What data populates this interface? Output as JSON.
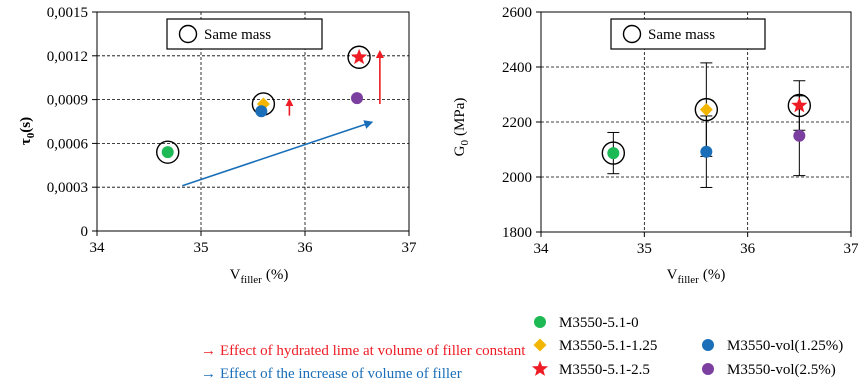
{
  "chart_data": [
    {
      "type": "scatter",
      "title": "",
      "xlabel_main": "V",
      "xlabel_sub": "filler",
      "xlabel_unit": "(%)",
      "ylabel_main": "τ",
      "ylabel_sub": "0",
      "ylabel_unit": "(s)",
      "xlim": [
        34,
        37
      ],
      "ylim": [
        0,
        0.0015
      ],
      "xticks": [
        "34",
        "35",
        "36",
        "37"
      ],
      "xtick_values": [
        34,
        35,
        36,
        37
      ],
      "yticks": [
        "0",
        "0,0003",
        "0,0006",
        "0,0009",
        "0,0012",
        "0,0015"
      ],
      "ytick_values": [
        0,
        0.0003,
        0.0006,
        0.0009,
        0.0012,
        0.0015
      ],
      "grid": "dashed",
      "annotation": "Same mass",
      "series": [
        {
          "name": "M3550-5.1-0",
          "marker": "circle",
          "color": "#1db954",
          "points": [
            [
              34.68,
              0.00054
            ]
          ]
        },
        {
          "name": "M3550-5.1-1.25",
          "marker": "diamond",
          "color": "#f2b600",
          "points": [
            [
              35.6,
              0.00087
            ]
          ]
        },
        {
          "name": "M3550-5.1-2.5",
          "marker": "star",
          "color": "#ee1c25",
          "points": [
            [
              36.52,
              0.00119
            ]
          ]
        },
        {
          "name": "M3550-vol(1.25%)",
          "marker": "circle",
          "color": "#1b6fb8",
          "points": [
            [
              35.58,
              0.00082
            ]
          ]
        },
        {
          "name": "M3550-vol(2.5%)",
          "marker": "circle",
          "color": "#7b3fa0",
          "points": [
            [
              36.5,
              0.00091
            ]
          ]
        }
      ],
      "same_mass_circles": [
        [
          34.68,
          0.00054
        ],
        [
          35.6,
          0.00087
        ],
        [
          36.52,
          0.00119
        ]
      ],
      "red_arrows": [
        {
          "x": 35.85,
          "from": 0.00079,
          "to": 0.00091
        },
        {
          "x": 36.72,
          "from": 0.00087,
          "to": 0.00124
        }
      ],
      "blue_arrow": {
        "from": [
          34.82,
          0.00031
        ],
        "to": [
          36.62,
          0.00074
        ]
      }
    },
    {
      "type": "scatter",
      "title": "",
      "xlabel_main": "V",
      "xlabel_sub": "filler",
      "xlabel_unit": "(%)",
      "ylabel_main": "G",
      "ylabel_sub": "0",
      "ylabel_unit": "(MPa)",
      "xlim": [
        34,
        37
      ],
      "ylim": [
        1800,
        2600
      ],
      "xticks": [
        "34",
        "35",
        "36",
        "37"
      ],
      "xtick_values": [
        34,
        35,
        36,
        37
      ],
      "yticks": [
        "1800",
        "2000",
        "2200",
        "2400",
        "2600"
      ],
      "ytick_values": [
        1800,
        2000,
        2200,
        2400,
        2600
      ],
      "grid": "dashed",
      "annotation": "Same mass",
      "series": [
        {
          "name": "M3550-5.1-0",
          "marker": "circle",
          "color": "#1db954",
          "points": [
            [
              34.7,
              2087
            ]
          ],
          "err": [
            [
              2012,
              2162
            ]
          ]
        },
        {
          "name": "M3550-5.1-1.25",
          "marker": "diamond",
          "color": "#f2b600",
          "points": [
            [
              35.6,
              2245
            ]
          ],
          "err": [
            [
              2075,
              2415
            ]
          ]
        },
        {
          "name": "M3550-5.1-2.5",
          "marker": "star",
          "color": "#ee1c25",
          "points": [
            [
              36.5,
              2260
            ]
          ],
          "err": [
            [
              2170,
              2350
            ]
          ]
        },
        {
          "name": "M3550-vol(1.25%)",
          "marker": "circle",
          "color": "#1b6fb8",
          "points": [
            [
              35.6,
              2092
            ]
          ],
          "err": [
            [
              1962,
              2222
            ]
          ]
        },
        {
          "name": "M3550-vol(2.5%)",
          "marker": "circle",
          "color": "#7b3fa0",
          "points": [
            [
              36.5,
              2150
            ]
          ],
          "err": [
            [
              2005,
              2295
            ]
          ]
        }
      ],
      "same_mass_circles": [
        [
          34.7,
          2087
        ],
        [
          35.6,
          2245
        ],
        [
          36.5,
          2260
        ]
      ]
    }
  ],
  "notes": {
    "red_arrow_symbol": "→",
    "red_text": "Effect of hydrated lime  at volume of filler constant",
    "blue_arrow_symbol": "→",
    "blue_text": "Effect of the increase of volume of filler",
    "red_color": "#ee1c25",
    "blue_color": "#1b6fb8"
  }
}
